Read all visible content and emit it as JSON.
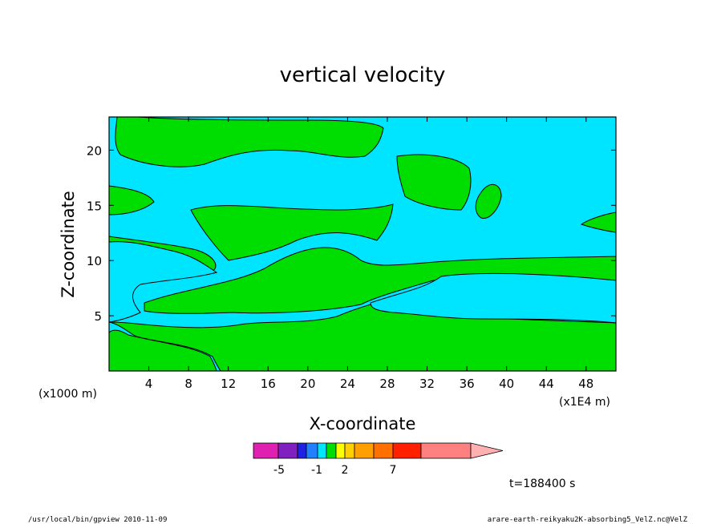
{
  "chart_data": {
    "type": "heatmap",
    "title": "vertical velocity",
    "xlabel": "X-coordinate",
    "ylabel": "Z-coordinate",
    "x_unit": "(x1E4 m)",
    "z_unit": "(x1000 m)",
    "xlim": [
      0,
      51
    ],
    "ylim": [
      0,
      23
    ],
    "x_ticks": [
      4,
      8,
      12,
      16,
      20,
      24,
      28,
      32,
      36,
      40,
      44,
      48
    ],
    "y_ticks": [
      5,
      10,
      15,
      20
    ],
    "time_label": "t=188400 s",
    "field_colors": {
      "background": "#00e5ff",
      "regions": "#00dd00"
    },
    "colorbar": {
      "tick_labels": [
        "-5",
        "-1",
        "2",
        "7"
      ],
      "colors": [
        "#e020b0",
        "#8020c0",
        "#2020e0",
        "#2080ff",
        "#00e5ff",
        "#00dd00",
        "#ffff00",
        "#ffd000",
        "#ffa000",
        "#ff7000",
        "#ff2000",
        "#ff8080",
        "#ffb0b0"
      ]
    }
  },
  "footer": {
    "left": "/usr/local/bin/gpview  2010-11-09",
    "right": "arare-earth-reikyaku2K-absorbing5_VelZ.nc@VelZ"
  }
}
